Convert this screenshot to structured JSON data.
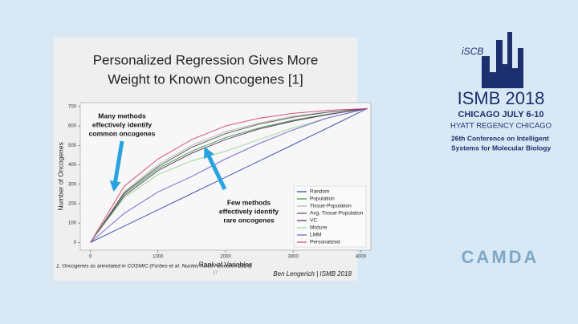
{
  "slide": {
    "title_lines": [
      "Personalized Regression Gives More",
      "Weight to Known Oncogenes [1]"
    ],
    "footnote": "1. Oncogenes as annotated in COSMIC (Forbes et al. Nucleic Acids Research 2014)",
    "author": "Ben Lengerich | ISMB 2018",
    "page_number": "17"
  },
  "logo": {
    "society": "iSCB",
    "name": "ISMB 2018",
    "place": "CHICAGO JULY 6-10",
    "venue": "HYATT REGENCY CHICAGO",
    "subtitle_lines": [
      "26th Conference on Intelligent",
      "Systems for Molecular Biology"
    ],
    "partner": "CAMDA"
  },
  "chart_data": {
    "type": "line",
    "x_label": "Rank of Variables",
    "y_label": "Number of Oncogenes",
    "x": [
      0,
      500,
      1000,
      1500,
      2000,
      2500,
      3000,
      3500,
      4100
    ],
    "series": [
      {
        "name": "Random",
        "color": "#2b3fa8",
        "values": [
          0,
          84,
          168,
          252,
          336,
          420,
          504,
          588,
          690
        ]
      },
      {
        "name": "Population",
        "color": "#3a9a3a",
        "values": [
          0,
          250,
          380,
          470,
          540,
          590,
          630,
          660,
          690
        ]
      },
      {
        "name": "Tissue-Population",
        "color": "#b0b0b0",
        "values": [
          0,
          260,
          400,
          500,
          570,
          615,
          650,
          672,
          690
        ]
      },
      {
        "name": "Avg. Tissue-Population",
        "color": "#555555",
        "values": [
          0,
          255,
          390,
          490,
          560,
          610,
          645,
          670,
          690
        ]
      },
      {
        "name": "VC",
        "color": "#5a2a6a",
        "values": [
          0,
          240,
          370,
          460,
          530,
          585,
          625,
          658,
          690
        ]
      },
      {
        "name": "Mixture",
        "color": "#8fd88f",
        "values": [
          0,
          230,
          350,
          420,
          470,
          530,
          590,
          640,
          690
        ]
      },
      {
        "name": "LMM",
        "color": "#6a5acd",
        "values": [
          0,
          150,
          260,
          340,
          430,
          510,
          580,
          640,
          690
        ]
      },
      {
        "name": "Personalized",
        "color": "#d8406a",
        "values": [
          0,
          290,
          430,
          530,
          600,
          640,
          665,
          680,
          690
        ]
      }
    ],
    "xlim": [
      -150,
      4150
    ],
    "xticks": [
      0,
      1000,
      2000,
      3000,
      4000
    ],
    "ylim": [
      -40,
      720
    ],
    "yticks": [
      0,
      100,
      200,
      300,
      400,
      500,
      600,
      700
    ],
    "legend": "lower right",
    "annotations": [
      {
        "lines": [
          "Many methods",
          "effectively identify",
          "common oncogenes"
        ]
      },
      {
        "lines": [
          "Few methods",
          "effectively identify",
          "rare oncogenes"
        ]
      }
    ]
  }
}
